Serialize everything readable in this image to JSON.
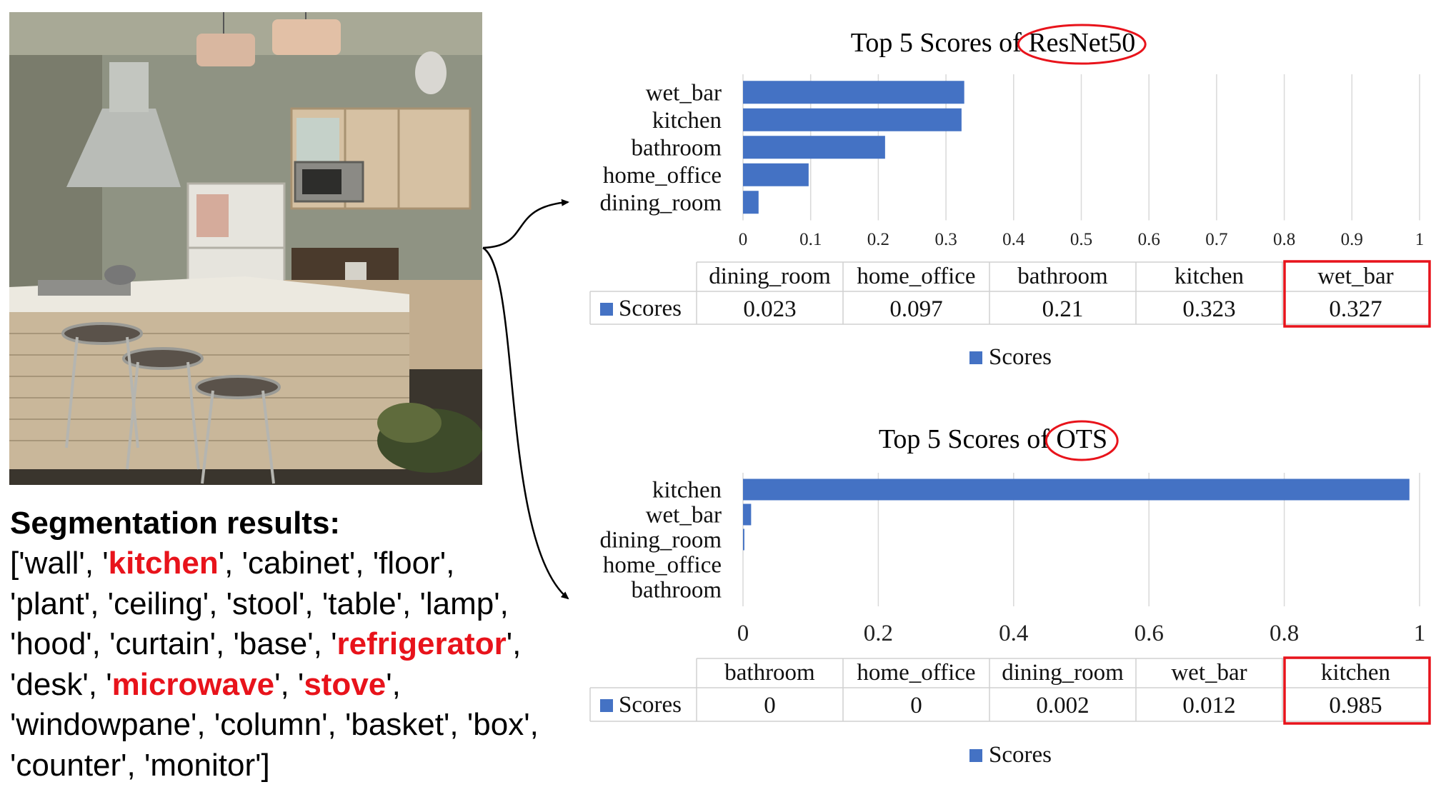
{
  "segmentation": {
    "title": "Segmentation results:",
    "items": [
      {
        "text": "['wall', '",
        "highlight": false
      },
      {
        "text": "kitchen",
        "highlight": true
      },
      {
        "text": "', 'cabinet', 'floor', 'plant', 'ceiling', 'stool', 'table', 'lamp', 'hood', 'curtain', 'base', '",
        "highlight": false
      },
      {
        "text": "refrigerator",
        "highlight": true
      },
      {
        "text": "', 'desk', '",
        "highlight": false
      },
      {
        "text": "microwave",
        "highlight": true
      },
      {
        "text": "', '",
        "highlight": false
      },
      {
        "text": "stove",
        "highlight": true
      },
      {
        "text": "', 'windowpane', 'column', 'basket', 'box', 'counter', 'monitor']",
        "highlight": false
      }
    ]
  },
  "colors": {
    "bar": "#4472c4",
    "highlight_red": "#e8131b",
    "grid": "#d9d9d9",
    "table_border": "#d0d0d0"
  },
  "chart_data": [
    {
      "type": "bar",
      "orientation": "horizontal",
      "title": "Top 5 Scores of ResNet50",
      "title_prefix": "Top 5 Scores of ",
      "title_model": "ResNet50",
      "categories": [
        "dining_room",
        "home_office",
        "bathroom",
        "kitchen",
        "wet_bar"
      ],
      "series": [
        {
          "name": "Scores",
          "values": [
            0.023,
            0.097,
            0.21,
            0.323,
            0.327
          ]
        }
      ],
      "value_labels": [
        "0.023",
        "0.097",
        "0.21",
        "0.323",
        "0.327"
      ],
      "xlim": [
        0,
        1
      ],
      "xticks": [
        "0",
        "0.1",
        "0.2",
        "0.3",
        "0.4",
        "0.5",
        "0.6",
        "0.7",
        "0.8",
        "0.9",
        "1"
      ],
      "grid": true,
      "legend": "bottom",
      "legend_label": "Scores",
      "data_table": true,
      "highlighted_category": "wet_bar"
    },
    {
      "type": "bar",
      "orientation": "horizontal",
      "title": "Top 5 Scores of OTS",
      "title_prefix": "Top 5 Scores of ",
      "title_model": "OTS",
      "categories": [
        "bathroom",
        "home_office",
        "dining_room",
        "wet_bar",
        "kitchen"
      ],
      "series": [
        {
          "name": "Scores",
          "values": [
            0,
            0,
            0.002,
            0.012,
            0.985
          ]
        }
      ],
      "value_labels": [
        "0",
        "0",
        "0.002",
        "0.012",
        "0.985"
      ],
      "xlim": [
        0,
        1
      ],
      "xticks": [
        "0",
        "0.2",
        "0.4",
        "0.6",
        "0.8",
        "1"
      ],
      "grid": true,
      "legend": "bottom",
      "legend_label": "Scores",
      "data_table": true,
      "highlighted_category": "kitchen"
    }
  ]
}
